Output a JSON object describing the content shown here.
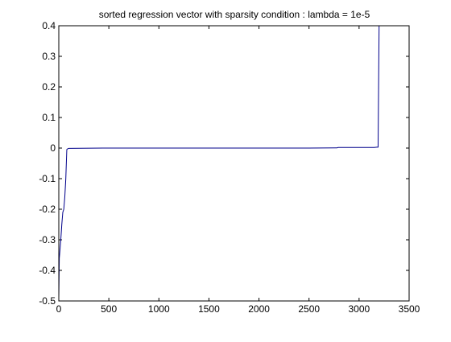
{
  "chart_data": {
    "type": "line",
    "title": "sorted regression vector with sparsity condition : lambda = 1e-5",
    "xlabel": "",
    "ylabel": "",
    "xlim": [
      0,
      3500
    ],
    "ylim": [
      -0.5,
      0.4
    ],
    "xticks": [
      0,
      500,
      1000,
      1500,
      2000,
      2500,
      3000,
      3500
    ],
    "yticks": [
      -0.5,
      -0.4,
      -0.3,
      -0.2,
      -0.1,
      0,
      0.1,
      0.2,
      0.3,
      0.4
    ],
    "xtick_labels": [
      "0",
      "500",
      "1000",
      "1500",
      "2000",
      "2500",
      "3000",
      "3500"
    ],
    "ytick_labels": [
      "-0.5",
      "-0.4",
      "-0.3",
      "-0.2",
      "-0.1",
      "0",
      "0.1",
      "0.2",
      "0.3",
      "0.4"
    ],
    "grid": false,
    "line_color": "#00008b",
    "series": [
      {
        "x": [
          0,
          5,
          10,
          20,
          30,
          40,
          50,
          60,
          70,
          80,
          90,
          100,
          500,
          1000,
          1500,
          2000,
          2500,
          2780,
          2790,
          3000,
          3150,
          3180,
          3190,
          3200
        ],
        "y": [
          -0.49,
          -0.36,
          -0.34,
          -0.3,
          -0.25,
          -0.21,
          -0.2,
          -0.16,
          -0.1,
          -0.005,
          -0.002,
          -0.001,
          0,
          0,
          0,
          0,
          0,
          0.0005,
          0.002,
          0.002,
          0.002,
          0.003,
          0.003,
          0.4
        ]
      }
    ]
  }
}
